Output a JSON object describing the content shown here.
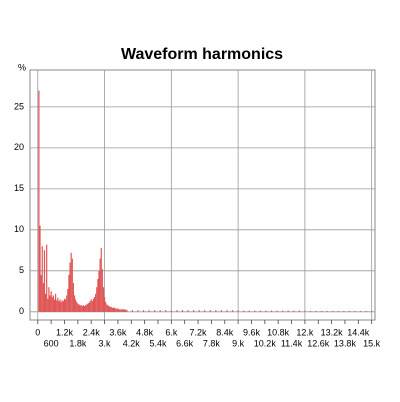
{
  "chart_data": {
    "type": "bar",
    "title": "Waveform harmonics",
    "y_label": "%",
    "color": "#e05555",
    "grid": true,
    "xlim": [
      -350,
      15150
    ],
    "ylim": [
      -1,
      29.5
    ],
    "yticks": [
      0,
      5,
      10,
      15,
      20,
      25
    ],
    "xticks": [
      0,
      600,
      {
        "value": 1200,
        "label": "1.2k"
      },
      {
        "value": 1800,
        "label": "1.8k"
      },
      {
        "value": 2400,
        "label": "2.4k"
      },
      {
        "value": 3000,
        "label": "3.k"
      },
      {
        "value": 3600,
        "label": "3.6k"
      },
      {
        "value": 4200,
        "label": "4.2k"
      },
      {
        "value": 4800,
        "label": "4.8k"
      },
      {
        "value": 5400,
        "label": "5.4k"
      },
      {
        "value": 6000,
        "label": "6.k"
      },
      {
        "value": 6600,
        "label": "6.6k"
      },
      {
        "value": 7200,
        "label": "7.2k"
      },
      {
        "value": 7800,
        "label": "7.8k"
      },
      {
        "value": 8400,
        "label": "8.4k"
      },
      {
        "value": 9000,
        "label": "9.k"
      },
      {
        "value": 9600,
        "label": "9.6k"
      },
      {
        "value": 10200,
        "label": "10.2k"
      },
      {
        "value": 10800,
        "label": "10.8k"
      },
      {
        "value": 11400,
        "label": "11.4k"
      },
      {
        "value": 12000,
        "label": "12.k"
      },
      {
        "value": 12600,
        "label": "12.6k"
      },
      {
        "value": 13200,
        "label": "13.2k"
      },
      {
        "value": 13800,
        "label": "13.8k"
      },
      {
        "value": 14400,
        "label": "14.4k"
      },
      {
        "value": 15000,
        "label": "15.k"
      }
    ],
    "x": [
      50,
      100,
      150,
      200,
      250,
      300,
      350,
      400,
      450,
      500,
      550,
      600,
      650,
      700,
      750,
      800,
      850,
      900,
      950,
      1000,
      1050,
      1100,
      1150,
      1200,
      1250,
      1300,
      1350,
      1400,
      1450,
      1500,
      1550,
      1600,
      1650,
      1700,
      1750,
      1800,
      1850,
      1900,
      1950,
      2000,
      2050,
      2100,
      2150,
      2200,
      2250,
      2300,
      2350,
      2400,
      2450,
      2500,
      2550,
      2600,
      2650,
      2700,
      2750,
      2800,
      2850,
      2900,
      2950,
      3000,
      3050,
      3100,
      3150,
      3200,
      3250,
      3300,
      3350,
      3400,
      3450,
      3500,
      3550,
      3600,
      3650,
      3700,
      3750,
      3800,
      3850,
      3900,
      3950,
      4000,
      4250,
      4500,
      4750,
      5000,
      5250,
      5500,
      5750,
      6000,
      6250,
      6500,
      6750,
      7000,
      7250,
      7500,
      7750,
      8000,
      8250,
      8500,
      8750,
      9000,
      9250,
      9500,
      9750,
      10000,
      10250,
      10500,
      10750,
      11000,
      11250,
      11500,
      11750,
      12000,
      12250,
      12500,
      12750,
      13000,
      13250,
      13500,
      13750,
      14000,
      14250,
      14500,
      14750,
      15000
    ],
    "values": [
      27,
      10.5,
      4.5,
      8,
      3.5,
      7.5,
      2.2,
      8.2,
      1.6,
      3,
      2,
      2.5,
      1.8,
      2,
      1.5,
      2.2,
      1.4,
      1.7,
      1.3,
      1.5,
      1.2,
      1.4,
      1.3,
      1.6,
      1.5,
      2,
      2.8,
      4.5,
      6,
      7.2,
      6.5,
      3.5,
      2,
      1.5,
      1.2,
      1,
      0.9,
      0.8,
      0.8,
      0.7,
      0.8,
      0.7,
      0.8,
      0.9,
      1,
      1.1,
      1.3,
      1.5,
      1.3,
      1.6,
      1.8,
      2.2,
      3,
      4,
      5,
      6.5,
      7.8,
      5.2,
      3,
      1.8,
      1.2,
      0.9,
      0.8,
      0.7,
      0.6,
      0.6,
      0.5,
      0.5,
      0.5,
      0.4,
      0.4,
      0.4,
      0.3,
      0.3,
      0.3,
      0.3,
      0.3,
      0.3,
      0.25,
      0.25,
      0.2,
      0.2,
      0.2,
      0.2,
      0.2,
      0.2,
      0.2,
      0.2,
      0.2,
      0.2,
      0.2,
      0.2,
      0.2,
      0.2,
      0.2,
      0.2,
      0.2,
      0.2,
      0.2,
      0.2,
      0.15,
      0.15,
      0.15,
      0.15,
      0.15,
      0.15,
      0.15,
      0.15,
      0.15,
      0.15,
      0.15,
      0.15,
      0.1,
      0.1,
      0.1,
      0.1,
      0.1,
      0.1,
      0.1,
      0.1,
      0.1,
      0.1,
      0.1,
      0.1
    ]
  }
}
